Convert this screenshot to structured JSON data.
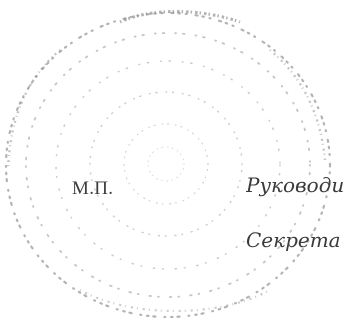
{
  "stamp": {
    "label": "М.П.",
    "seal_color": "#8a8a8a"
  },
  "signatures": {
    "role_1": "Руководи",
    "role_2": "Секрета"
  }
}
